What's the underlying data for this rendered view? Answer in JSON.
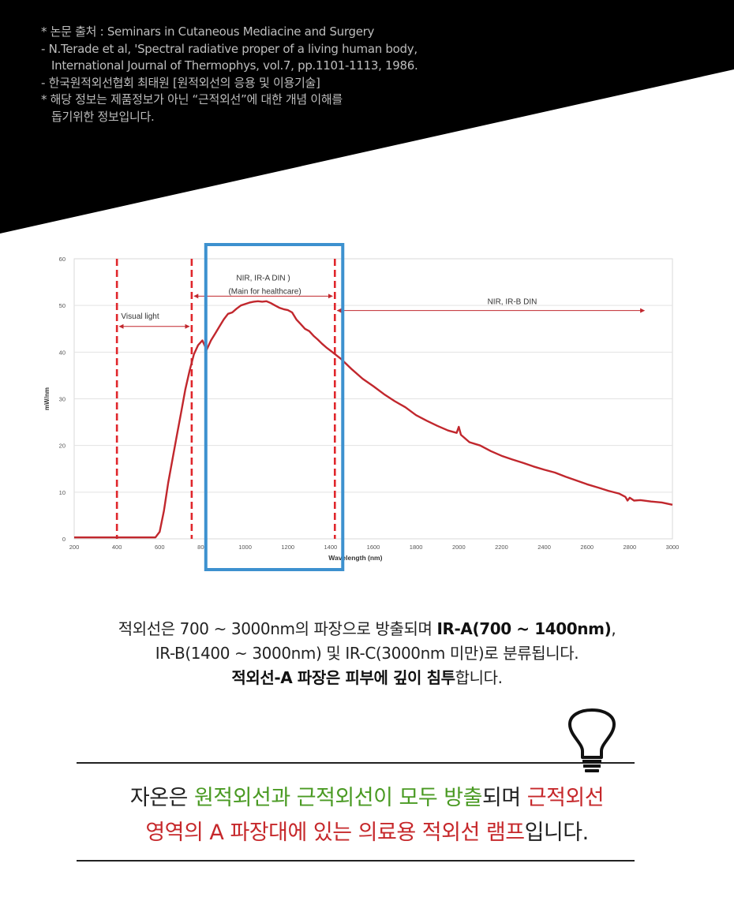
{
  "sources": [
    "* 논문 출처 : Seminars in Cutaneous Mediacine and Surgery",
    "- N.Terade et al, 'Spectral radiative proper of a living human body,",
    "International Journal of Thermophys, vol.7, pp.1101-1113, 1986.",
    "- 한국원적외선협회 최태원 [원적외선의 응용 및 이용기술]",
    "* 해당 정보는 제품정보가 아닌 “근적외선”에 대한 개념 이해를",
    "돕기위한 정보입니다."
  ],
  "chart_data": {
    "type": "line",
    "xlabel": "Wavelength (nm)",
    "ylabel": "mW/nm",
    "xlim": [
      200,
      3000
    ],
    "ylim": [
      0,
      60
    ],
    "x_ticks": [
      200,
      400,
      600,
      800,
      1000,
      1200,
      1400,
      1600,
      1800,
      2000,
      2200,
      2400,
      2600,
      2800,
      3000
    ],
    "y_ticks": [
      0,
      10,
      20,
      30,
      40,
      50,
      60
    ],
    "grid": "horizontal",
    "series_color": "#c1272d",
    "series": [
      {
        "x": [
          200,
          580,
          600,
          620,
          640,
          660,
          680,
          700,
          720,
          740,
          760,
          780,
          800,
          820,
          840,
          860,
          880,
          900,
          920,
          940,
          960,
          980,
          1000,
          1020,
          1040,
          1060,
          1080,
          1100,
          1120,
          1140,
          1160,
          1180,
          1200,
          1220,
          1240,
          1260,
          1280,
          1300,
          1320,
          1340,
          1360,
          1380,
          1400,
          1450,
          1500,
          1550,
          1600,
          1650,
          1700,
          1750,
          1800,
          1850,
          1900,
          1950,
          1990,
          2000,
          2010,
          2050,
          2100,
          2150,
          2200,
          2250,
          2300,
          2350,
          2400,
          2450,
          2500,
          2550,
          2600,
          2650,
          2700,
          2750,
          2780,
          2790,
          2800,
          2820,
          2850,
          2900,
          2950,
          3000
        ],
        "y": [
          0.3,
          0.3,
          1.5,
          6,
          12,
          17,
          22,
          27,
          32,
          36,
          39.5,
          41.5,
          42.5,
          40.5,
          42.5,
          44,
          45.5,
          47,
          48.2,
          48.5,
          49.3,
          50,
          50.3,
          50.6,
          50.8,
          50.9,
          50.8,
          50.9,
          50.5,
          50,
          49.5,
          49.2,
          49,
          48.5,
          47,
          46,
          45,
          44.5,
          43.5,
          42.7,
          41.8,
          41,
          40.3,
          38.5,
          36.3,
          34.3,
          32.7,
          31,
          29.5,
          28.2,
          26.5,
          25.3,
          24.2,
          23.2,
          22.7,
          24,
          22.3,
          20.7,
          20,
          18.8,
          17.8,
          17,
          16.3,
          15.5,
          14.8,
          14.2,
          13.3,
          12.5,
          11.7,
          11,
          10.3,
          9.7,
          9,
          8.2,
          8.8,
          8.2,
          8.3,
          8,
          7.8,
          7.3
        ]
      }
    ],
    "markers_x": [
      400,
      750,
      1420
    ],
    "highlight_range": [
      720,
      1650
    ],
    "annotations": [
      {
        "text": "Visual light",
        "from": 400,
        "to": 750,
        "y": 45.5
      },
      {
        "text": "NIR, IR-A DIN )",
        "from": 750,
        "to": 1420,
        "y": 52
      },
      {
        "text": "(Main for healthcare)"
      },
      {
        "text": "NIR, IR-B DIN",
        "from": 1420,
        "to": 2880,
        "y": 48.9
      }
    ]
  },
  "description": {
    "line1_pre": "적외선은 700 ~ 3000nm의 파장으로 방출되며 ",
    "line1_bold": "IR-A(700 ~ 1400nm)",
    "line1_post": ",",
    "line2": "IR-B(1400 ~ 3000nm) 및 IR-C(3000nm 미만)로 분류됩니다.",
    "line3_bold": "적외선-A 파장은 피부에 깊이 침투",
    "line3_post": "합니다."
  },
  "summary": {
    "p1": "자온은 ",
    "p2_green": "원적외선과 근적외선이 모두 방출",
    "p3": "되며 ",
    "p4_red": "근적외선",
    "p5_red": "영역의 A 파장대에 있는 의료용 적외선 램프",
    "p6": "입니다."
  },
  "colors": {
    "green": "#4a9a23",
    "red": "#c6282b",
    "box": "#3d91cf"
  },
  "icons": [
    "light-bulb-icon"
  ]
}
